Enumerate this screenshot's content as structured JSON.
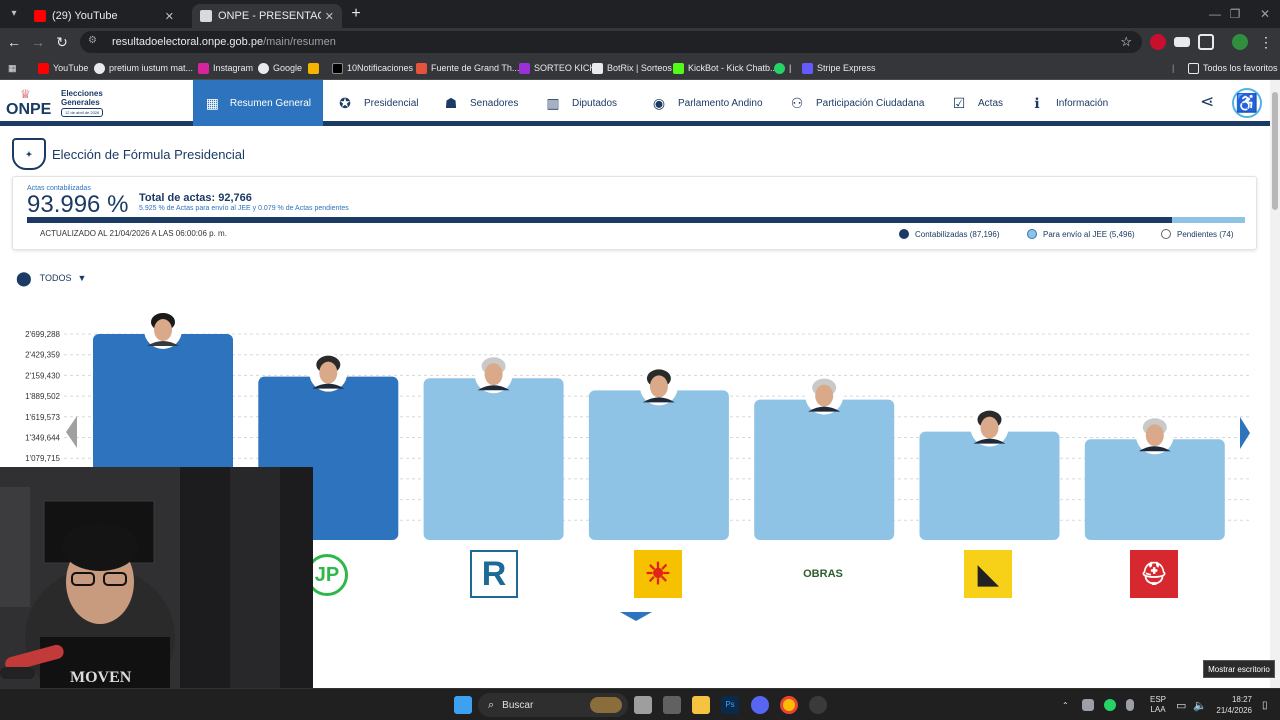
{
  "browser": {
    "tabs": [
      {
        "title": "(29) YouTube",
        "active": false
      },
      {
        "title": "ONPE - PRESENTACIÓN DE RES",
        "active": true
      }
    ],
    "url_domain": "resultadoelectoral.onpe.gob.pe",
    "url_path": "/main/resumen",
    "bookmarks": [
      "YouTube",
      "pretium iustum mat...",
      "Instagram",
      "Google",
      "10Notificaciones",
      "Fuente de Grand Th...",
      "SORTEO KICK",
      "BotRix | Sorteos",
      "KickBot - Kick Chatb...",
      "|",
      "Stripe Express"
    ],
    "all_bookmarks_label": "Todos los favoritos"
  },
  "site": {
    "logo_text": "ONPE",
    "logo_title": "Elecciones Generales",
    "logo_date": "12 de abril de 2026",
    "nav": [
      {
        "label": "Resumen General",
        "icon": "grid-icon",
        "active": true
      },
      {
        "label": "Presidencial",
        "icon": "seal-icon",
        "active": false
      },
      {
        "label": "Senadores",
        "icon": "people-icon",
        "active": false
      },
      {
        "label": "Diputados",
        "icon": "building-icon",
        "active": false
      },
      {
        "label": "Parlamento Andino",
        "icon": "globe-icon",
        "active": false
      },
      {
        "label": "Participación Ciudadana",
        "icon": "community-icon",
        "active": false
      },
      {
        "label": "Actas",
        "icon": "clipboard-icon",
        "active": false
      },
      {
        "label": "Información",
        "icon": "info-icon",
        "active": false
      }
    ]
  },
  "page": {
    "title": "Elección de Fórmula Presidencial",
    "actas_label": "Actas contabilizadas",
    "percent": "93.996 %",
    "progress_fraction": 0.93996,
    "total_actas": "Total de actas: 92,766",
    "subnote": "5.925 % de Actas para envío al JEE y 0.079 % de Actas pendientes",
    "updated": "ACTUALIZADO AL 21/04/2026 A LAS 06:00:06 p. m.",
    "legend": [
      {
        "label": "Contabilizadas (87,196)",
        "color": "#1b3a64"
      },
      {
        "label": "Para envío al JEE (5,496)",
        "color": "#8fc3e6"
      },
      {
        "label": "Pendientes (74)",
        "color": "#ffffff"
      }
    ],
    "filter_label": "TODOS"
  },
  "chart_data": {
    "type": "bar",
    "y_ticks": [
      "2'699,288",
      "2'429,359",
      "2'159,430",
      "1'889,502",
      "1'619,573",
      "1'349,644",
      "1'079,715"
    ],
    "values": [
      2699288,
      2140000,
      2120000,
      1960000,
      1840000,
      1420000,
      1320000
    ],
    "highlight": [
      true,
      true,
      false,
      false,
      false,
      false,
      false
    ],
    "colors": {
      "dark": "#2d73bd",
      "light": "#8fc3e6"
    },
    "party_logos": [
      "",
      "JP",
      "R",
      "sun",
      "OBRAS",
      "País para Todos",
      "Renovación"
    ]
  },
  "taskbar": {
    "search_label": "Buscar",
    "lang": "ESP",
    "lang2": "LAA",
    "time": "18:27",
    "date": "21/4/2026",
    "tooltip": "Mostrar escritorio"
  }
}
